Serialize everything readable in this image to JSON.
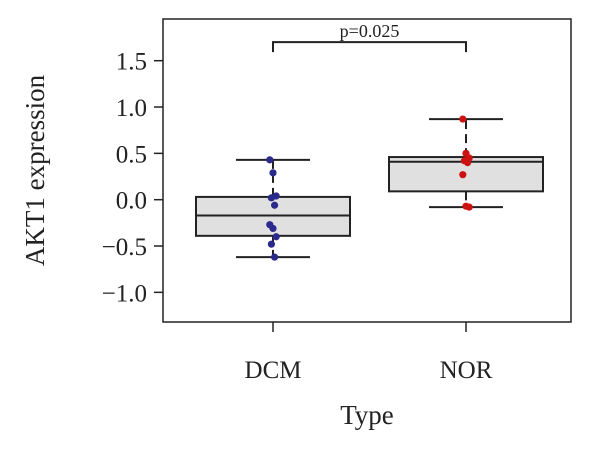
{
  "chart_data": {
    "type": "box",
    "categories": [
      "DCM",
      "NOR"
    ],
    "xlabel": "Type",
    "ylabel": "AKT1 expression",
    "ylim": [
      -1.32,
      1.95
    ],
    "yticks": [
      -1.0,
      -0.5,
      0.0,
      0.5,
      1.0,
      1.5
    ],
    "ytick_labels": [
      "−1.0",
      "−0.5",
      "0.0",
      "0.5",
      "1.0",
      "1.5"
    ],
    "grid": false,
    "boxes": [
      {
        "category": "DCM",
        "whisker_low": -0.62,
        "q1": -0.39,
        "median": -0.17,
        "q3": 0.03,
        "whisker_high": 0.43,
        "color": "#2a2a8c"
      },
      {
        "category": "NOR",
        "whisker_low": -0.08,
        "q1": 0.09,
        "median": 0.41,
        "q3": 0.46,
        "whisker_high": 0.87,
        "color": "#cc1111"
      }
    ],
    "points": [
      {
        "category": "DCM",
        "values": [
          0.43,
          0.29,
          0.04,
          0.02,
          -0.06,
          -0.27,
          -0.31,
          -0.4,
          -0.48,
          -0.62
        ]
      },
      {
        "category": "NOR",
        "values": [
          0.87,
          0.5,
          0.45,
          0.42,
          0.4,
          0.27,
          -0.07,
          -0.08
        ]
      }
    ],
    "annotation": {
      "text": "p=0.025",
      "y": 1.7
    },
    "box_fill": "#e0e0e0",
    "box_stroke": "#222222"
  }
}
